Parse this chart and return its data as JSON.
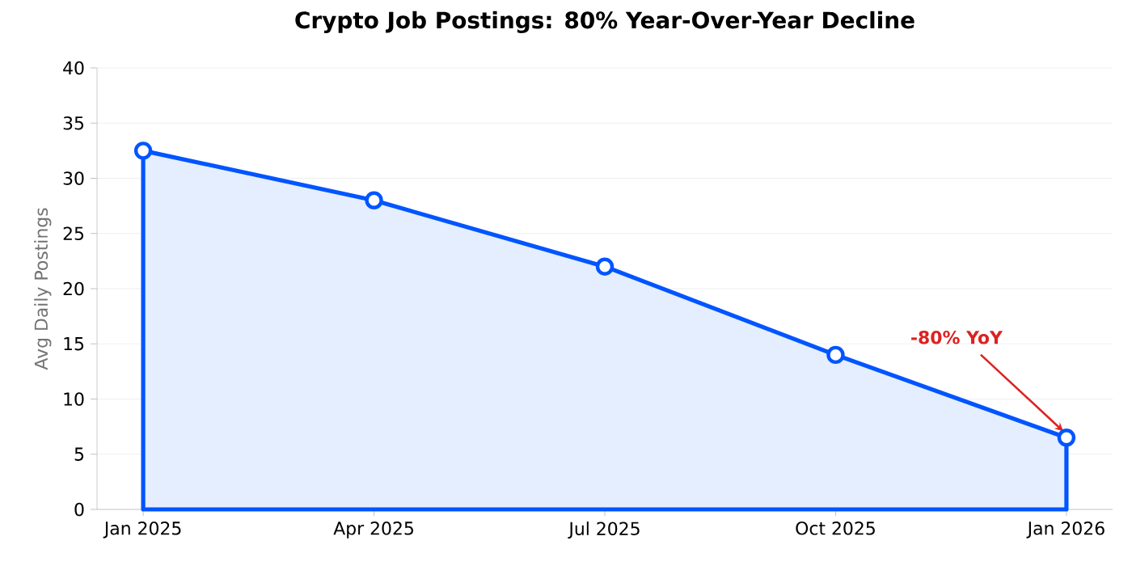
{
  "chart_data": {
    "type": "area",
    "title": "Crypto Job Postings: 80% Year-Over-Year Decline",
    "ylabel": "Avg Daily Postings",
    "categories": [
      "Jan 2025",
      "Apr 2025",
      "Jul 2025",
      "Oct 2025",
      "Jan 2026"
    ],
    "values": [
      32.5,
      28,
      22,
      14,
      6.5
    ],
    "color": "#0055ff",
    "ylim": [
      0,
      40
    ],
    "yticks": [
      0,
      5,
      10,
      15,
      20,
      25,
      30,
      35,
      40
    ],
    "grid": "y",
    "marker": "circle",
    "line_style": "solid",
    "annotations": [
      {
        "text": "-80% YoY",
        "x": "Jan 2026",
        "y": 6.5
      }
    ]
  }
}
